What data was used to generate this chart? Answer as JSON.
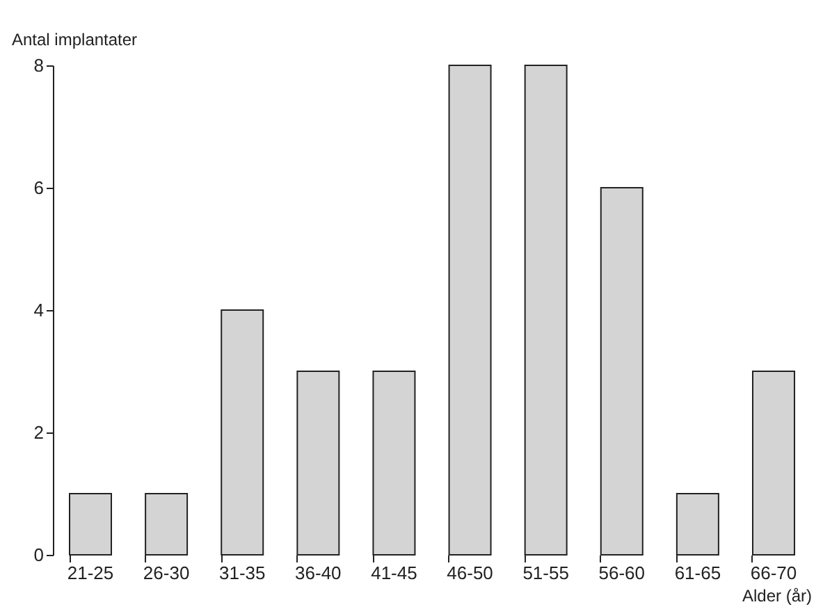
{
  "chart_data": {
    "type": "bar",
    "xlabel": "Alder (år)",
    "ylabel": "Antal implantater",
    "categories": [
      "21-25",
      "26-30",
      "31-35",
      "36-40",
      "41-45",
      "46-50",
      "51-55",
      "56-60",
      "61-65",
      "66-70"
    ],
    "values": [
      1,
      1,
      4,
      3,
      3,
      8,
      8,
      6,
      1,
      3
    ],
    "color": "#d4d4d4",
    "ylim": [
      0,
      8
    ],
    "yticks": [
      0,
      2,
      4,
      6,
      8
    ],
    "grid": false
  }
}
